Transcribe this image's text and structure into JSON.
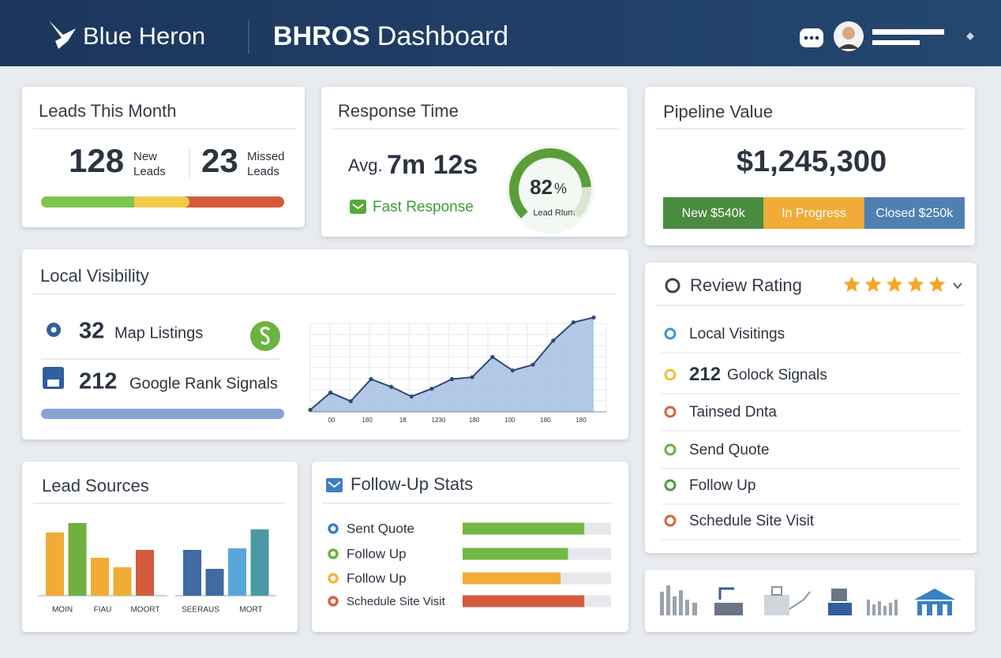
{
  "header": {
    "brand": "Blue Heron",
    "title_strong": "BHROS",
    "title_rest": "Dashboard"
  },
  "leads": {
    "title": "Leads This Month",
    "new_count": 128,
    "new_label": [
      "New",
      "Leads"
    ],
    "missed_count": 23,
    "missed_label": [
      "Missed",
      "Leads"
    ]
  },
  "response": {
    "title": "Response Time",
    "avg_label": "Avg.",
    "avg_time": "7m 12s",
    "status": "Fast Response",
    "gauge": {
      "value": 82,
      "unit": "%",
      "label": "Lead Rlum",
      "range": [
        0,
        100
      ]
    }
  },
  "pipeline": {
    "title": "Pipeline Value",
    "total": "$1,245,300",
    "segments": [
      {
        "label": "New $540k",
        "color": "#4a8c3f"
      },
      {
        "label": "In Progress",
        "color": "#f0ac37"
      },
      {
        "label": "Closed $250k",
        "color": "#4f80b2"
      }
    ]
  },
  "visibility": {
    "title": "Local Visibility",
    "metrics": [
      {
        "value": 32,
        "label": "Map Listings"
      },
      {
        "value": 212,
        "label": "Google Rank Signals"
      }
    ],
    "chart": {
      "type": "area",
      "color": "#a3c0e2",
      "line_color": "#2f4a72",
      "values": [
        2,
        20,
        11,
        34,
        26,
        16,
        24,
        34,
        36,
        57,
        43,
        49,
        74,
        93,
        98
      ],
      "ylim": [
        0,
        100
      ],
      "x_labels": [
        "00",
        "180",
        "18",
        "1230",
        "180",
        "100",
        "180",
        "180"
      ]
    }
  },
  "review": {
    "title": "Review Rating",
    "stars": 5,
    "items": [
      {
        "label": "Local Visitings",
        "color": "#3a96d8"
      },
      {
        "value": 212,
        "label": "Golock Signals",
        "color": "#f0c030"
      },
      {
        "label": "Tainsed Dnta",
        "color": "#d8613e"
      },
      {
        "label": "Send Quote",
        "color": "#6fb040"
      },
      {
        "label": "Follow Up",
        "color": "#4f9a45"
      },
      {
        "label": "Schedule Site Visit",
        "color": "#d8613e"
      }
    ]
  },
  "lead_sources": {
    "title": "Lead Sources",
    "type": "bar",
    "ylim": [
      0,
      100
    ],
    "groups": [
      {
        "values": [
          80,
          92,
          48,
          36,
          58
        ],
        "colors": [
          "#f0ac37",
          "#6fb040",
          "#f0ac37",
          "#f0ac37",
          "#d35b3c"
        ]
      },
      {
        "values": [
          58,
          34,
          60,
          84
        ],
        "colors": [
          "#3f6aa3",
          "#3f6aa3",
          "#5aa5dc",
          "#4a9aa5"
        ]
      }
    ],
    "labels": [
      "MOIN",
      "FIAU",
      "MOORT",
      "SEERAUS",
      "MORT"
    ]
  },
  "follow_up": {
    "title": "Follow-Up Stats",
    "xlim": [
      0,
      100
    ],
    "rows": [
      {
        "label": "Sent Quote",
        "dot": "#3a7fc4",
        "value": 82,
        "color": "#72b843"
      },
      {
        "label": "Follow Up",
        "dot": "#6fb040",
        "value": 71,
        "color": "#72b843"
      },
      {
        "label": "Follow Up",
        "dot": "#f0b83a",
        "value": 66,
        "color": "#f0ac37"
      },
      {
        "label": "Schedule Site Visit",
        "dot": "#d8613e",
        "value": 82,
        "color": "#d35b3c"
      }
    ]
  }
}
